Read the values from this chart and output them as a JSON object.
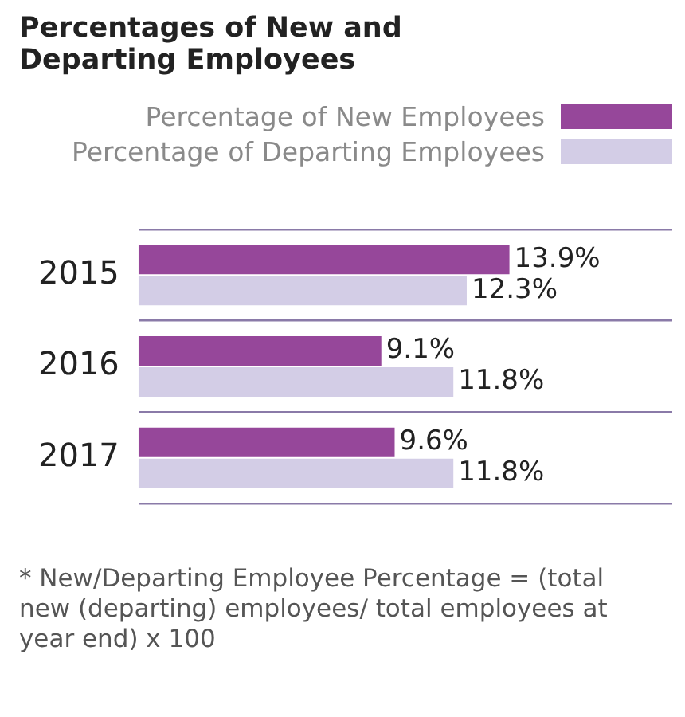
{
  "chart_data": {
    "type": "bar",
    "orientation": "horizontal",
    "title": "Percentages of New and Departing Employees",
    "categories": [
      "2015",
      "2016",
      "2017"
    ],
    "series": [
      {
        "name": "Percentage of New Employees",
        "color": "#96479a",
        "values": [
          13.9,
          9.1,
          9.6
        ],
        "value_labels": [
          "13.9%",
          "9.1%",
          "9.6%"
        ]
      },
      {
        "name": "Percentage of Departing Employees",
        "color": "#d3cde6",
        "values": [
          12.3,
          11.8,
          11.8
        ],
        "value_labels": [
          "12.3%",
          "11.8%",
          "11.8%"
        ]
      }
    ],
    "legend": "top",
    "grid": "y",
    "annotations": [
      "* New/Departing Employee Percentage = (total new (departing) employees/ total employees at year end) x 100"
    ]
  }
}
